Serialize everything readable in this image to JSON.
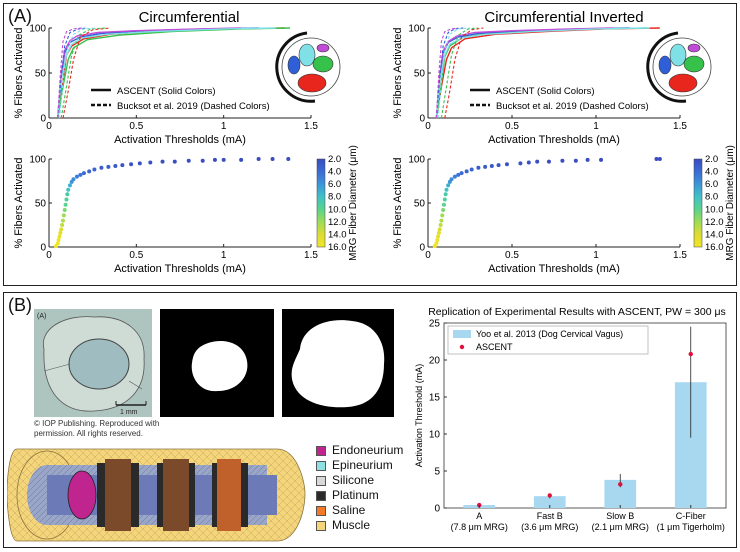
{
  "panelA": {
    "label": "(A)",
    "left_title": "Circumferential",
    "right_title": "Circumferential Inverted",
    "colorbar": {
      "label": "MRG Fiber Diameter (μm)",
      "ticks": [
        "2.0",
        "4.0",
        "6.0",
        "8.0",
        "10.0",
        "12.0",
        "14.0",
        "16.0"
      ]
    },
    "line_legend": {
      "solid": "ASCENT (Solid Colors)",
      "dashed": "Bucksot et al. 2019 (Dashed Colors)"
    },
    "fascicle_colors": [
      "#2f5fd8",
      "#7fe0e6",
      "#c14bd6",
      "#36c24a",
      "#e8261e"
    ]
  },
  "panelB": {
    "label": "(B)",
    "histology_tag": "(A)",
    "scale_bar": "1 mm",
    "copyright_line1": "© IOP Publishing. Reproduced with",
    "copyright_line2": "permission. All rights reserved.",
    "materials": [
      {
        "name": "Endoneurium",
        "color": "#c0258f"
      },
      {
        "name": "Epineurium",
        "color": "#8fe0e0"
      },
      {
        "name": "Silicone",
        "color": "#d8d8d8"
      },
      {
        "name": "Platinum",
        "color": "#2a2a2a"
      },
      {
        "name": "Saline",
        "color": "#f07a2a"
      },
      {
        "name": "Muscle",
        "color": "#f5d57a"
      }
    ]
  },
  "chart_data": [
    {
      "type": "line",
      "title": "Circumferential",
      "xlabel": "Activation Thresholds (mA)",
      "ylabel": "% Fibers Activated",
      "xlim": [
        0,
        1.5
      ],
      "ylim": [
        0,
        100
      ],
      "xticks": [
        "0",
        "0.5",
        "1",
        "1.5"
      ],
      "yticks": [
        "0",
        "50",
        "100"
      ],
      "legend_position": "lower-center",
      "series": [
        {
          "style": "solid",
          "color": "#e8261e",
          "x": [
            0.05,
            0.08,
            0.1,
            0.13,
            0.2,
            0.35,
            0.6,
            1.0,
            1.35
          ],
          "y": [
            0,
            40,
            70,
            80,
            88,
            93,
            96,
            99,
            100
          ]
        },
        {
          "style": "solid",
          "color": "#36c24a",
          "x": [
            0.05,
            0.08,
            0.11,
            0.14,
            0.22,
            0.4,
            0.7,
            1.1,
            1.38
          ],
          "y": [
            0,
            35,
            65,
            78,
            87,
            92,
            96,
            99,
            100
          ]
        },
        {
          "style": "solid",
          "color": "#2f5fd8",
          "x": [
            0.05,
            0.07,
            0.09,
            0.12,
            0.18,
            0.3,
            0.55,
            0.9,
            1.2
          ],
          "y": [
            0,
            45,
            72,
            84,
            90,
            94,
            97,
            99,
            100
          ]
        },
        {
          "style": "solid",
          "color": "#c14bd6",
          "x": [
            0.05,
            0.07,
            0.09,
            0.12,
            0.16,
            0.28,
            0.5,
            0.85,
            1.1
          ],
          "y": [
            0,
            48,
            75,
            86,
            91,
            95,
            97,
            99,
            100
          ]
        },
        {
          "style": "solid",
          "color": "#7fe0e6",
          "x": [
            0.05,
            0.07,
            0.1,
            0.13,
            0.19,
            0.33,
            0.6,
            1.0,
            1.3
          ],
          "y": [
            0,
            42,
            70,
            82,
            89,
            93,
            96,
            99,
            100
          ]
        },
        {
          "style": "dashed",
          "color": "#e8261e",
          "x": [
            0.08,
            0.11,
            0.14,
            0.18,
            0.25,
            0.35
          ],
          "y": [
            0,
            30,
            65,
            90,
            98,
            100
          ]
        },
        {
          "style": "dashed",
          "color": "#36c24a",
          "x": [
            0.07,
            0.1,
            0.13,
            0.17,
            0.24,
            0.32
          ],
          "y": [
            0,
            35,
            70,
            92,
            99,
            100
          ]
        },
        {
          "style": "dashed",
          "color": "#2f5fd8",
          "x": [
            0.05,
            0.07,
            0.09,
            0.12,
            0.17,
            0.22
          ],
          "y": [
            0,
            45,
            80,
            95,
            99,
            100
          ]
        },
        {
          "style": "dashed",
          "color": "#c14bd6",
          "x": [
            0.05,
            0.065,
            0.08,
            0.1,
            0.14,
            0.19
          ],
          "y": [
            0,
            50,
            85,
            96,
            99,
            100
          ]
        },
        {
          "style": "dashed",
          "color": "#7fe0e6",
          "x": [
            0.06,
            0.08,
            0.1,
            0.14,
            0.2,
            0.27
          ],
          "y": [
            0,
            40,
            75,
            93,
            99,
            100
          ]
        }
      ]
    },
    {
      "type": "line",
      "title": "Circumferential Inverted",
      "xlabel": "Activation Thresholds (mA)",
      "ylabel": "% Fibers Activated",
      "xlim": [
        0,
        1.5
      ],
      "ylim": [
        0,
        100
      ],
      "xticks": [
        "0",
        "0.5",
        "1",
        "1.5"
      ],
      "yticks": [
        "0",
        "50",
        "100"
      ],
      "legend_position": "lower-center",
      "series": [
        {
          "style": "solid",
          "color": "#e8261e",
          "x": [
            0.05,
            0.08,
            0.11,
            0.14,
            0.22,
            0.4,
            0.7,
            1.05,
            1.38
          ],
          "y": [
            0,
            35,
            65,
            78,
            88,
            93,
            96,
            99,
            100
          ]
        },
        {
          "style": "solid",
          "color": "#36c24a",
          "x": [
            0.05,
            0.08,
            0.1,
            0.13,
            0.2,
            0.35,
            0.62,
            1.0,
            1.3
          ],
          "y": [
            0,
            40,
            68,
            80,
            89,
            94,
            97,
            99,
            100
          ]
        },
        {
          "style": "solid",
          "color": "#2f5fd8",
          "x": [
            0.05,
            0.07,
            0.09,
            0.12,
            0.18,
            0.3,
            0.55,
            0.9,
            1.2
          ],
          "y": [
            0,
            45,
            72,
            84,
            90,
            94,
            97,
            99,
            100
          ]
        },
        {
          "style": "solid",
          "color": "#c14bd6",
          "x": [
            0.05,
            0.07,
            0.09,
            0.12,
            0.17,
            0.28,
            0.5,
            0.85,
            1.1
          ],
          "y": [
            0,
            48,
            74,
            85,
            91,
            95,
            97,
            99,
            100
          ]
        },
        {
          "style": "solid",
          "color": "#7fe0e6",
          "x": [
            0.05,
            0.07,
            0.1,
            0.13,
            0.2,
            0.34,
            0.62,
            1.0,
            1.32
          ],
          "y": [
            0,
            42,
            70,
            82,
            89,
            93,
            96,
            99,
            100
          ]
        },
        {
          "style": "dashed",
          "color": "#e8261e",
          "x": [
            0.1,
            0.13,
            0.16,
            0.2,
            0.26,
            0.33
          ],
          "y": [
            0,
            30,
            65,
            90,
            98,
            100
          ]
        },
        {
          "style": "dashed",
          "color": "#36c24a",
          "x": [
            0.08,
            0.11,
            0.14,
            0.18,
            0.24,
            0.3
          ],
          "y": [
            0,
            35,
            70,
            92,
            99,
            100
          ]
        },
        {
          "style": "dashed",
          "color": "#2f5fd8",
          "x": [
            0.05,
            0.07,
            0.09,
            0.12,
            0.16,
            0.21
          ],
          "y": [
            0,
            45,
            80,
            95,
            99,
            100
          ]
        },
        {
          "style": "dashed",
          "color": "#c14bd6",
          "x": [
            0.05,
            0.065,
            0.08,
            0.1,
            0.14,
            0.18
          ],
          "y": [
            0,
            50,
            85,
            96,
            99,
            100
          ]
        },
        {
          "style": "dashed",
          "color": "#7fe0e6",
          "x": [
            0.06,
            0.08,
            0.1,
            0.13,
            0.18,
            0.25
          ],
          "y": [
            0,
            40,
            75,
            93,
            99,
            100
          ]
        }
      ]
    },
    {
      "type": "scatter",
      "xlabel": "Activation Thresholds (mA)",
      "ylabel": "% Fibers Activated",
      "xlim": [
        0,
        1.5
      ],
      "ylim": [
        0,
        100
      ],
      "xticks": [
        "0",
        "0.5",
        "1",
        "1.5"
      ],
      "yticks": [
        "0",
        "50",
        "100"
      ],
      "color_by": "MRG Fiber Diameter (μm)",
      "points": [
        {
          "x": 0.04,
          "y": 1,
          "d": 16
        },
        {
          "x": 0.05,
          "y": 4,
          "d": 16
        },
        {
          "x": 0.055,
          "y": 8,
          "d": 15.5
        },
        {
          "x": 0.06,
          "y": 12,
          "d": 15
        },
        {
          "x": 0.065,
          "y": 16,
          "d": 14.5
        },
        {
          "x": 0.07,
          "y": 20,
          "d": 14
        },
        {
          "x": 0.075,
          "y": 25,
          "d": 13
        },
        {
          "x": 0.08,
          "y": 30,
          "d": 12.5
        },
        {
          "x": 0.085,
          "y": 36,
          "d": 12
        },
        {
          "x": 0.09,
          "y": 42,
          "d": 11
        },
        {
          "x": 0.095,
          "y": 48,
          "d": 10
        },
        {
          "x": 0.1,
          "y": 54,
          "d": 9.5
        },
        {
          "x": 0.105,
          "y": 60,
          "d": 9
        },
        {
          "x": 0.11,
          "y": 65,
          "d": 8
        },
        {
          "x": 0.12,
          "y": 70,
          "d": 7
        },
        {
          "x": 0.13,
          "y": 74,
          "d": 6
        },
        {
          "x": 0.14,
          "y": 77,
          "d": 5.5
        },
        {
          "x": 0.16,
          "y": 80,
          "d": 5
        },
        {
          "x": 0.18,
          "y": 82,
          "d": 4.5
        },
        {
          "x": 0.2,
          "y": 84,
          "d": 4
        },
        {
          "x": 0.23,
          "y": 86,
          "d": 3.5
        },
        {
          "x": 0.26,
          "y": 88,
          "d": 3.5
        },
        {
          "x": 0.3,
          "y": 90,
          "d": 3
        },
        {
          "x": 0.34,
          "y": 91,
          "d": 3
        },
        {
          "x": 0.38,
          "y": 92,
          "d": 2.8
        },
        {
          "x": 0.42,
          "y": 93,
          "d": 2.6
        },
        {
          "x": 0.47,
          "y": 94,
          "d": 2.5
        },
        {
          "x": 0.52,
          "y": 95,
          "d": 2.4
        },
        {
          "x": 0.58,
          "y": 96,
          "d": 2.3
        },
        {
          "x": 0.65,
          "y": 97,
          "d": 2.2
        },
        {
          "x": 0.72,
          "y": 97,
          "d": 2.1
        },
        {
          "x": 0.8,
          "y": 98,
          "d": 2.1
        },
        {
          "x": 0.88,
          "y": 98,
          "d": 2
        },
        {
          "x": 0.95,
          "y": 99,
          "d": 2
        },
        {
          "x": 1.0,
          "y": 99,
          "d": 2
        },
        {
          "x": 1.1,
          "y": 99,
          "d": 2
        },
        {
          "x": 1.2,
          "y": 100,
          "d": 2
        },
        {
          "x": 1.28,
          "y": 100,
          "d": 2
        },
        {
          "x": 1.37,
          "y": 100,
          "d": 2
        }
      ]
    },
    {
      "type": "scatter",
      "xlabel": "Activation Thresholds (mA)",
      "ylabel": "% Fibers Activated",
      "xlim": [
        0,
        1.5
      ],
      "ylim": [
        0,
        100
      ],
      "xticks": [
        "0",
        "0.5",
        "1",
        "1.5"
      ],
      "yticks": [
        "0",
        "50",
        "100"
      ],
      "color_by": "MRG Fiber Diameter (μm)",
      "points": [
        {
          "x": 0.04,
          "y": 1,
          "d": 16
        },
        {
          "x": 0.05,
          "y": 4,
          "d": 16
        },
        {
          "x": 0.055,
          "y": 8,
          "d": 15.5
        },
        {
          "x": 0.06,
          "y": 12,
          "d": 15
        },
        {
          "x": 0.065,
          "y": 16,
          "d": 14.5
        },
        {
          "x": 0.07,
          "y": 20,
          "d": 14
        },
        {
          "x": 0.075,
          "y": 25,
          "d": 13
        },
        {
          "x": 0.08,
          "y": 30,
          "d": 12.5
        },
        {
          "x": 0.085,
          "y": 36,
          "d": 12
        },
        {
          "x": 0.09,
          "y": 42,
          "d": 11
        },
        {
          "x": 0.095,
          "y": 48,
          "d": 10
        },
        {
          "x": 0.1,
          "y": 54,
          "d": 9.5
        },
        {
          "x": 0.105,
          "y": 60,
          "d": 9
        },
        {
          "x": 0.11,
          "y": 65,
          "d": 8
        },
        {
          "x": 0.12,
          "y": 70,
          "d": 7
        },
        {
          "x": 0.13,
          "y": 74,
          "d": 6
        },
        {
          "x": 0.14,
          "y": 77,
          "d": 5.5
        },
        {
          "x": 0.16,
          "y": 80,
          "d": 5
        },
        {
          "x": 0.18,
          "y": 82,
          "d": 4.5
        },
        {
          "x": 0.2,
          "y": 84,
          "d": 4
        },
        {
          "x": 0.23,
          "y": 86,
          "d": 3.5
        },
        {
          "x": 0.26,
          "y": 88,
          "d": 3.5
        },
        {
          "x": 0.3,
          "y": 90,
          "d": 3
        },
        {
          "x": 0.34,
          "y": 91,
          "d": 3
        },
        {
          "x": 0.38,
          "y": 92,
          "d": 2.8
        },
        {
          "x": 0.42,
          "y": 93,
          "d": 2.6
        },
        {
          "x": 0.47,
          "y": 94,
          "d": 2.5
        },
        {
          "x": 0.55,
          "y": 95,
          "d": 2.4
        },
        {
          "x": 0.6,
          "y": 96,
          "d": 2.3
        },
        {
          "x": 0.65,
          "y": 97,
          "d": 2.2
        },
        {
          "x": 0.72,
          "y": 97,
          "d": 2.1
        },
        {
          "x": 0.8,
          "y": 98,
          "d": 2.1
        },
        {
          "x": 0.88,
          "y": 98,
          "d": 2
        },
        {
          "x": 0.95,
          "y": 99,
          "d": 2
        },
        {
          "x": 1.03,
          "y": 99,
          "d": 2
        },
        {
          "x": 1.36,
          "y": 100,
          "d": 2
        },
        {
          "x": 1.38,
          "y": 100,
          "d": 2
        }
      ]
    },
    {
      "type": "bar",
      "title": "Replication of Experimental Results with ASCENT, PW = 300 μs",
      "xlabel": "",
      "ylabel": "Activation Threshold (mA)",
      "ylim": [
        0,
        25
      ],
      "yticks": [
        "0",
        "5",
        "10",
        "15",
        "20",
        "25"
      ],
      "categories": [
        "A",
        "Fast B",
        "Slow B",
        "C-Fiber"
      ],
      "category_sublabels": [
        "(7.8 μm MRG)",
        "(3.6 μm MRG)",
        "(2.1 μm MRG)",
        "(1 μm Tigerholm)"
      ],
      "legend_position": "top-left",
      "series": [
        {
          "name": "Yoo et al. 2013 (Dog Cervical Vagus)",
          "kind": "bar",
          "color": "#a8d8f0",
          "values": [
            0.4,
            1.6,
            3.8,
            17.0
          ],
          "err_low": [
            0.2,
            1.3,
            2.8,
            9.5
          ],
          "err_high": [
            0.6,
            1.9,
            4.6,
            24.5
          ]
        },
        {
          "name": "ASCENT",
          "kind": "point",
          "color": "#e0103a",
          "values": [
            0.4,
            1.7,
            3.2,
            20.8
          ]
        }
      ]
    }
  ]
}
